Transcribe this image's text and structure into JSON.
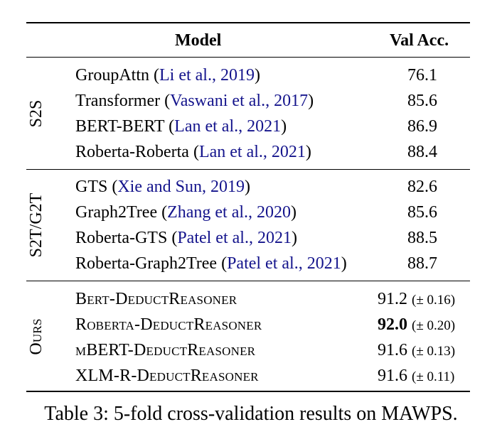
{
  "table": {
    "header": {
      "model": "Model",
      "acc": "Val Acc."
    },
    "groups": [
      {
        "label": "S2S",
        "rows": [
          {
            "name": "GroupAttn",
            "cite_a": "Li et al.",
            "cite_b": "2019",
            "acc": "76.1"
          },
          {
            "name": "Transformer",
            "cite_a": "Vaswani et al.",
            "cite_b": "2017",
            "acc": "85.6"
          },
          {
            "name": "BERT-BERT",
            "cite_a": "Lan et al.",
            "cite_b": "2021",
            "acc": "86.9"
          },
          {
            "name": "Roberta-Roberta",
            "cite_a": "Lan et al.",
            "cite_b": "2021",
            "acc": "88.4"
          }
        ]
      },
      {
        "label": "S2T/G2T",
        "rows": [
          {
            "name": "GTS",
            "cite_a": "Xie and Sun",
            "cite_b": "2019",
            "acc": "82.6"
          },
          {
            "name": "Graph2Tree",
            "cite_a": "Zhang et al.",
            "cite_b": "2020",
            "acc": "85.6"
          },
          {
            "name": "Roberta-GTS",
            "cite_a": "Patel et al.",
            "cite_b": "2021",
            "acc": "88.5"
          },
          {
            "name": "Roberta-Graph2Tree",
            "cite_a": "Patel et al.",
            "cite_b": "2021",
            "acc": "88.7"
          }
        ]
      },
      {
        "label": "Ours",
        "rows": [
          {
            "name": "Bert-DeductReasoner",
            "acc": "91.2",
            "std": "(± 0.16)"
          },
          {
            "name": "Roberta-DeductReasoner",
            "acc": "92.0",
            "std": "(± 0.20)",
            "best": true
          },
          {
            "name": "mBERT-DeductReasoner",
            "acc": "91.6",
            "std": "(± 0.13)"
          },
          {
            "name": "XLM-R-DeductReasoner",
            "acc": "91.6",
            "std": "(± 0.11)"
          }
        ]
      }
    ]
  },
  "caption": "Table 3: 5-fold cross-validation results on MAWPS."
}
